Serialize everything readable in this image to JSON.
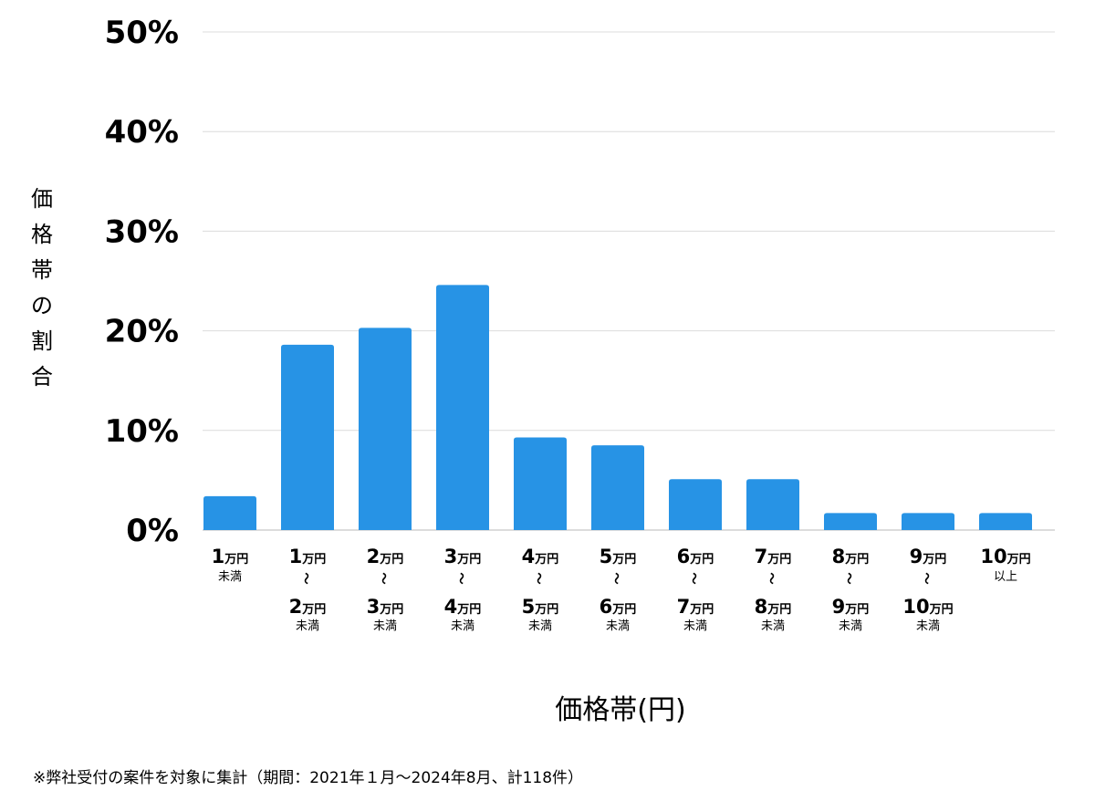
{
  "chart_data": {
    "type": "bar",
    "ylim": [
      0,
      50
    ],
    "y_ticks": [
      0,
      10,
      20,
      30,
      40,
      50
    ],
    "y_tick_labels": [
      "0%",
      "10%",
      "20%",
      "30%",
      "40%",
      "50%"
    ],
    "ylabel": "価格帯の割合",
    "xlabel": "価格帯(円)",
    "grid": true,
    "bar_color": "#2793e5",
    "categories": [
      {
        "top": "1",
        "top_unit": "万円",
        "bottom": "",
        "bottom_unit": "",
        "suffix": "未満"
      },
      {
        "top": "1",
        "top_unit": "万円",
        "bottom": "2",
        "bottom_unit": "万円",
        "suffix": "未満"
      },
      {
        "top": "2",
        "top_unit": "万円",
        "bottom": "3",
        "bottom_unit": "万円",
        "suffix": "未満"
      },
      {
        "top": "3",
        "top_unit": "万円",
        "bottom": "4",
        "bottom_unit": "万円",
        "suffix": "未満"
      },
      {
        "top": "4",
        "top_unit": "万円",
        "bottom": "5",
        "bottom_unit": "万円",
        "suffix": "未満"
      },
      {
        "top": "5",
        "top_unit": "万円",
        "bottom": "6",
        "bottom_unit": "万円",
        "suffix": "未満"
      },
      {
        "top": "6",
        "top_unit": "万円",
        "bottom": "7",
        "bottom_unit": "万円",
        "suffix": "未満"
      },
      {
        "top": "7",
        "top_unit": "万円",
        "bottom": "8",
        "bottom_unit": "万円",
        "suffix": "未満"
      },
      {
        "top": "8",
        "top_unit": "万円",
        "bottom": "9",
        "bottom_unit": "万円",
        "suffix": "未満"
      },
      {
        "top": "9",
        "top_unit": "万円",
        "bottom": "10",
        "bottom_unit": "万円",
        "suffix": "未満"
      },
      {
        "top": "10",
        "top_unit": "万円",
        "bottom": "",
        "bottom_unit": "",
        "suffix": "以上"
      }
    ],
    "range_mark": "〜",
    "values": [
      3.4,
      18.6,
      20.3,
      24.6,
      9.3,
      8.5,
      5.1,
      5.1,
      1.7,
      1.7,
      1.7
    ]
  },
  "footnote": "※弊社受付の案件を対象に集計（期間：2021年１月〜2024年8月、計118件）"
}
